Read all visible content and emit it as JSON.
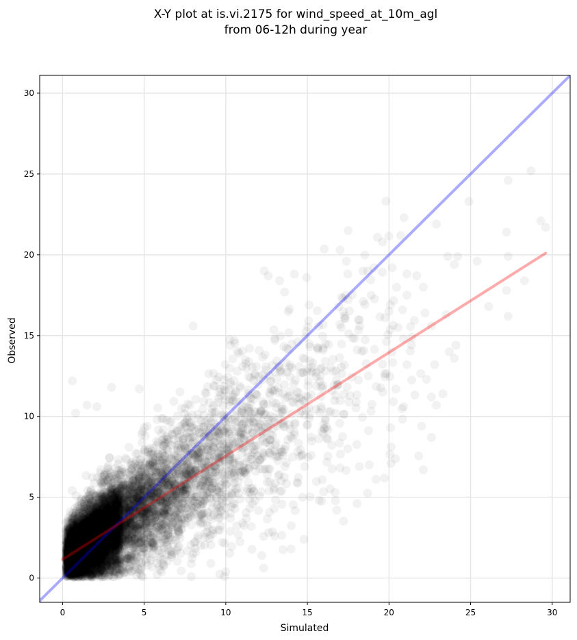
{
  "chart_data": {
    "type": "scatter",
    "title_line1": "X-Y plot at is.vi.2175 for wind_speed_at_10m_agl",
    "title_line2": "from 06-12h during year",
    "xlabel": "Simulated",
    "ylabel": "Observed",
    "xlim": [
      -1.4,
      31.1
    ],
    "ylim": [
      -1.5,
      31.1
    ],
    "xticks": [
      0,
      5,
      10,
      15,
      20,
      25,
      30
    ],
    "yticks": [
      0,
      5,
      10,
      15,
      20,
      25,
      30
    ],
    "grid": true,
    "point_color": "#000000",
    "point_alpha": 0.05,
    "identity_line": {
      "color": "#0000ff",
      "from": [
        -1.4,
        -1.4
      ],
      "to": [
        31.1,
        31.1
      ]
    },
    "fit_line": {
      "color": "#ff0000",
      "from": [
        0.0,
        1.15
      ],
      "to": [
        29.6,
        20.1
      ]
    },
    "outlier_points": [
      [
        28.7,
        25.2
      ],
      [
        27.3,
        24.6
      ],
      [
        24.9,
        23.3
      ],
      [
        22.9,
        21.9
      ],
      [
        29.3,
        22.1
      ],
      [
        29.6,
        21.7
      ],
      [
        27.2,
        21.4
      ],
      [
        17.0,
        20.3
      ],
      [
        27.3,
        19.9
      ],
      [
        23.6,
        19.9
      ],
      [
        24.2,
        19.9
      ],
      [
        25.4,
        19.6
      ],
      [
        24.0,
        19.4
      ],
      [
        20.2,
        19.2
      ],
      [
        18.4,
        19.0
      ],
      [
        22.1,
        18.0
      ],
      [
        21.7,
        18.7
      ],
      [
        28.3,
        18.4
      ],
      [
        13.3,
        18.4
      ],
      [
        14.2,
        18.8
      ],
      [
        27.2,
        17.8
      ],
      [
        21.1,
        17.5
      ],
      [
        26.1,
        16.8
      ],
      [
        27.3,
        16.2
      ],
      [
        22.2,
        16.4
      ],
      [
        20.0,
        16.5
      ],
      [
        23.5,
        16.3
      ],
      [
        22.6,
        15.6
      ],
      [
        24.1,
        14.4
      ],
      [
        22.8,
        13.2
      ],
      [
        23.7,
        14.0
      ],
      [
        24.0,
        13.6
      ],
      [
        21.1,
        13.2
      ],
      [
        22.3,
        12.3
      ],
      [
        22.6,
        11.2
      ],
      [
        23.3,
        11.4
      ],
      [
        22.9,
        10.7
      ],
      [
        20.9,
        10.6
      ],
      [
        22.0,
        9.4
      ],
      [
        20.1,
        9.3
      ],
      [
        22.6,
        8.7
      ],
      [
        22.1,
        6.7
      ],
      [
        16.8,
        4.2
      ],
      [
        16.7,
        5.3
      ],
      [
        14.8,
        2.4
      ],
      [
        13.0,
        2.6
      ],
      [
        12.2,
        1.4
      ],
      [
        14.0,
        1.8
      ],
      [
        10.0,
        0.4
      ],
      [
        0.6,
        12.2
      ],
      [
        0.8,
        10.2
      ],
      [
        1.5,
        10.7
      ],
      [
        3.0,
        11.8
      ],
      [
        4.7,
        11.7
      ],
      [
        2.1,
        10.6
      ],
      [
        8.0,
        15.6
      ],
      [
        10.8,
        13.9
      ],
      [
        13.6,
        17.7
      ],
      [
        15.1,
        16.9
      ],
      [
        17.2,
        17.3
      ]
    ],
    "bulk_point_count": 9000
  }
}
